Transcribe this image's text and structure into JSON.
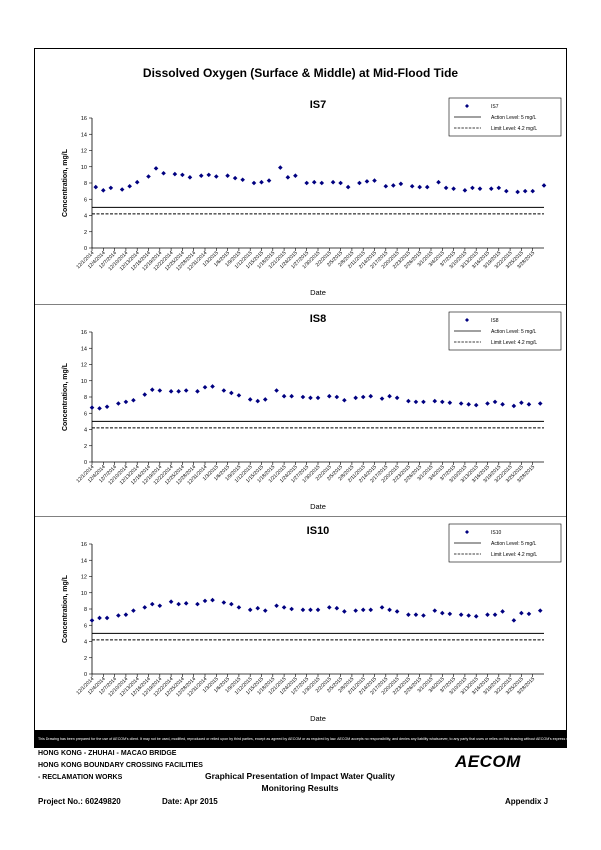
{
  "main_title": "Dissolved Oxygen (Surface & Middle) at Mid-Flood Tide",
  "x_dates": [
    "12/1/2014",
    "12/4/2014",
    "12/7/2014",
    "12/10/2014",
    "12/13/2014",
    "12/16/2014",
    "12/19/2014",
    "12/22/2014",
    "12/25/2014",
    "12/28/2014",
    "12/31/2014",
    "1/3/2015",
    "1/6/2015",
    "1/9/2015",
    "1/12/2015",
    "1/15/2015",
    "1/18/2015",
    "1/21/2015",
    "1/24/2015",
    "1/27/2015",
    "1/30/2015",
    "2/2/2015",
    "2/5/2015",
    "2/8/2015",
    "2/11/2015",
    "2/14/2015",
    "2/17/2015",
    "2/20/2015",
    "2/23/2015",
    "2/26/2015",
    "3/1/2015",
    "3/4/2015",
    "3/7/2015",
    "3/10/2015",
    "3/13/2015",
    "3/16/2015",
    "3/19/2015",
    "3/22/2015",
    "3/25/2015",
    "3/28/2015"
  ],
  "chart_data": [
    {
      "type": "scatter",
      "title": "IS7",
      "xlabel": "Date",
      "ylabel": "Concentration, mg/L",
      "ylim": [
        0,
        16
      ],
      "yticks": [
        0,
        2,
        4,
        6,
        8,
        10,
        12,
        14,
        16
      ],
      "xlim": [
        "12/1/2014",
        "3/31/2015"
      ],
      "grid": false,
      "legend_position": "top-right",
      "series": [
        {
          "name": "IS7",
          "marker": "diamond",
          "color": "#000080",
          "x": [
            "12/2/2014",
            "12/4/2014",
            "12/6/2014",
            "12/9/2014",
            "12/11/2014",
            "12/13/2014",
            "12/16/2014",
            "12/18/2014",
            "12/20/2014",
            "12/23/2014",
            "12/25/2014",
            "12/27/2014",
            "12/30/2014",
            "1/1/2015",
            "1/3/2015",
            "1/6/2015",
            "1/8/2015",
            "1/10/2015",
            "1/13/2015",
            "1/15/2015",
            "1/17/2015",
            "1/20/2015",
            "1/22/2015",
            "1/24/2015",
            "1/27/2015",
            "1/29/2015",
            "1/31/2015",
            "2/3/2015",
            "2/5/2015",
            "2/7/2015",
            "2/10/2015",
            "2/12/2015",
            "2/14/2015",
            "2/17/2015",
            "2/19/2015",
            "2/21/2015",
            "2/24/2015",
            "2/26/2015",
            "2/28/2015",
            "3/3/2015",
            "3/5/2015",
            "3/7/2015",
            "3/10/2015",
            "3/12/2015",
            "3/14/2015",
            "3/17/2015",
            "3/19/2015",
            "3/21/2015",
            "3/24/2015",
            "3/26/2015",
            "3/28/2015",
            "3/31/2015"
          ],
          "y": [
            7.5,
            7.1,
            7.4,
            7.2,
            7.6,
            8.1,
            8.8,
            9.8,
            9.2,
            9.1,
            9.0,
            8.7,
            8.9,
            9.0,
            8.8,
            8.9,
            8.6,
            8.4,
            8.0,
            8.1,
            8.3,
            9.9,
            8.7,
            8.9,
            8.0,
            8.1,
            8.0,
            8.1,
            8.0,
            7.5,
            8.0,
            8.2,
            8.3,
            7.6,
            7.7,
            7.9,
            7.6,
            7.5,
            7.5,
            8.1,
            7.4,
            7.3,
            7.1,
            7.4,
            7.3,
            7.3,
            7.4,
            7.0,
            6.9,
            7.0,
            7.0,
            7.7
          ]
        }
      ],
      "reference_lines": [
        {
          "name": "Action Level: 5 mg/L",
          "value": 5,
          "style": "solid"
        },
        {
          "name": "Limit Level: 4.2 mg/L",
          "value": 4.2,
          "style": "dashed"
        }
      ]
    },
    {
      "type": "scatter",
      "title": "IS8",
      "xlabel": "Date",
      "ylabel": "Concentration, mg/L",
      "ylim": [
        0,
        16
      ],
      "yticks": [
        0,
        2,
        4,
        6,
        8,
        10,
        12,
        14,
        16
      ],
      "xlim": [
        "12/1/2014",
        "3/31/2015"
      ],
      "grid": false,
      "legend_position": "top-right",
      "series": [
        {
          "name": "IS8",
          "marker": "diamond",
          "color": "#000080",
          "x": [
            "12/1/2014",
            "12/3/2014",
            "12/5/2014",
            "12/8/2014",
            "12/10/2014",
            "12/12/2014",
            "12/15/2014",
            "12/17/2014",
            "12/19/2014",
            "12/22/2014",
            "12/24/2014",
            "12/26/2014",
            "12/29/2014",
            "12/31/2014",
            "1/2/2015",
            "1/5/2015",
            "1/7/2015",
            "1/9/2015",
            "1/12/2015",
            "1/14/2015",
            "1/16/2015",
            "1/19/2015",
            "1/21/2015",
            "1/23/2015",
            "1/26/2015",
            "1/28/2015",
            "1/30/2015",
            "2/2/2015",
            "2/4/2015",
            "2/6/2015",
            "2/9/2015",
            "2/11/2015",
            "2/13/2015",
            "2/16/2015",
            "2/18/2015",
            "2/20/2015",
            "2/23/2015",
            "2/25/2015",
            "2/27/2015",
            "3/2/2015",
            "3/4/2015",
            "3/6/2015",
            "3/9/2015",
            "3/11/2015",
            "3/13/2015",
            "3/16/2015",
            "3/18/2015",
            "3/20/2015",
            "3/23/2015",
            "3/25/2015",
            "3/27/2015",
            "3/30/2015"
          ],
          "y": [
            6.7,
            6.6,
            6.8,
            7.2,
            7.4,
            7.6,
            8.3,
            8.9,
            8.8,
            8.7,
            8.7,
            8.8,
            8.7,
            9.2,
            9.3,
            8.8,
            8.5,
            8.2,
            7.7,
            7.5,
            7.7,
            8.8,
            8.1,
            8.1,
            8.0,
            7.9,
            7.9,
            8.1,
            8.0,
            7.6,
            7.9,
            8.0,
            8.1,
            7.8,
            8.1,
            7.9,
            7.5,
            7.4,
            7.4,
            7.5,
            7.4,
            7.3,
            7.2,
            7.1,
            7.0,
            7.2,
            7.4,
            7.1,
            6.9,
            7.3,
            7.1,
            7.2
          ]
        }
      ],
      "reference_lines": [
        {
          "name": "Action Level: 5 mg/L",
          "value": 5,
          "style": "solid"
        },
        {
          "name": "Limit Level: 4.2 mg/L",
          "value": 4.2,
          "style": "dashed"
        }
      ]
    },
    {
      "type": "scatter",
      "title": "IS10",
      "xlabel": "Date",
      "ylabel": "Concentration, mg/L",
      "ylim": [
        0,
        16
      ],
      "yticks": [
        0,
        2,
        4,
        6,
        8,
        10,
        12,
        14,
        16
      ],
      "xlim": [
        "12/1/2014",
        "3/31/2015"
      ],
      "grid": false,
      "legend_position": "top-right",
      "series": [
        {
          "name": "IS10",
          "marker": "diamond",
          "color": "#000080",
          "x": [
            "12/1/2014",
            "12/3/2014",
            "12/5/2014",
            "12/8/2014",
            "12/10/2014",
            "12/12/2014",
            "12/15/2014",
            "12/17/2014",
            "12/19/2014",
            "12/22/2014",
            "12/24/2014",
            "12/26/2014",
            "12/29/2014",
            "12/31/2014",
            "1/2/2015",
            "1/5/2015",
            "1/7/2015",
            "1/9/2015",
            "1/12/2015",
            "1/14/2015",
            "1/16/2015",
            "1/19/2015",
            "1/21/2015",
            "1/23/2015",
            "1/26/2015",
            "1/28/2015",
            "1/30/2015",
            "2/2/2015",
            "2/4/2015",
            "2/6/2015",
            "2/9/2015",
            "2/11/2015",
            "2/13/2015",
            "2/16/2015",
            "2/18/2015",
            "2/20/2015",
            "2/23/2015",
            "2/25/2015",
            "2/27/2015",
            "3/2/2015",
            "3/4/2015",
            "3/6/2015",
            "3/9/2015",
            "3/11/2015",
            "3/13/2015",
            "3/16/2015",
            "3/18/2015",
            "3/20/2015",
            "3/23/2015",
            "3/25/2015",
            "3/27/2015",
            "3/30/2015"
          ],
          "y": [
            6.6,
            6.9,
            6.9,
            7.2,
            7.3,
            7.8,
            8.2,
            8.6,
            8.4,
            8.9,
            8.6,
            8.7,
            8.6,
            9.0,
            9.1,
            8.8,
            8.6,
            8.2,
            7.9,
            8.1,
            7.8,
            8.4,
            8.2,
            8.0,
            7.9,
            7.9,
            7.9,
            8.2,
            8.1,
            7.7,
            7.8,
            7.9,
            7.9,
            8.2,
            7.9,
            7.7,
            7.3,
            7.3,
            7.2,
            7.8,
            7.5,
            7.4,
            7.3,
            7.2,
            7.1,
            7.3,
            7.3,
            7.7,
            6.6,
            7.5,
            7.4,
            7.8
          ]
        }
      ],
      "reference_lines": [
        {
          "name": "Action Level: 5 mg/L",
          "value": 5,
          "style": "solid"
        },
        {
          "name": "Limit Level: 4.2 mg/L",
          "value": 4.2,
          "style": "dashed"
        }
      ]
    }
  ],
  "disclaimer": "This Drawing has been prepared for the use of AECOM's client. It may not be used, modified, reproduced or relied upon by third parties, except as agreed by AECOM or as required by law. AECOM accepts no responsibility, and denies any liability whatsoever, to any party that uses or relies on this drawing without AECOM's express written consent.",
  "footer": {
    "line1": "HONG KONG - ZHUHAI - MACAO BRIDGE",
    "line2": "HONG KONG BOUNDARY CROSSING FACILITIES",
    "line3": "- RECLAMATION WORKS",
    "center_line1": "Graphical Presentation of Impact Water Quality",
    "center_line2": "Monitoring Results",
    "logo": "AECOM",
    "project": "Project No.: 60249820",
    "date": "Date: Apr 2015",
    "appendix": "Appendix J"
  }
}
